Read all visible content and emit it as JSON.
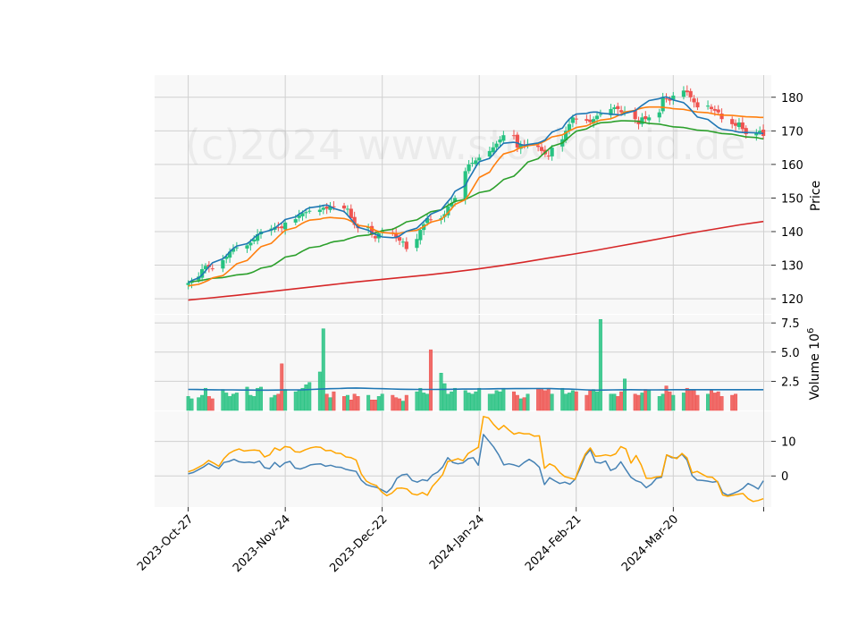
{
  "watermark": "(c)2024 www.stockdroid.de",
  "chart_data": {
    "type": "candlestick",
    "x_tick_labels": [
      "2023-Oct-27",
      "2023-Nov-24",
      "2023-Dec-22",
      "2024-Jan-24",
      "2024-Feb-21",
      "2024-Mar-20"
    ],
    "x_tick_days": [
      0,
      28,
      56,
      84,
      112,
      140
    ],
    "x_range_days": [
      -9.7,
      168.3
    ],
    "price_panel": {
      "ylabel": "Price",
      "yticks": [
        120,
        130,
        140,
        150,
        160,
        170,
        180
      ],
      "ylim": [
        115.5,
        186.6
      ],
      "colors": {
        "up": "#26c281",
        "down": "#ef5350"
      },
      "days": [
        0,
        1,
        3,
        4,
        5,
        6,
        7,
        10,
        11,
        12,
        13,
        14,
        17,
        18,
        19,
        20,
        21,
        24,
        25,
        26,
        27,
        28,
        31,
        32,
        33,
        34,
        35,
        38,
        39,
        40,
        41,
        42,
        45,
        46,
        47,
        48,
        49,
        52,
        53,
        54,
        55,
        56,
        59,
        60,
        61,
        62,
        63,
        66,
        67,
        68,
        69,
        70,
        73,
        74,
        75,
        76,
        77,
        80,
        81,
        82,
        83,
        84,
        87,
        88,
        89,
        90,
        91,
        94,
        95,
        96,
        97,
        98,
        101,
        102,
        103,
        104,
        105,
        108,
        109,
        110,
        111,
        112,
        115,
        116,
        117,
        118,
        119,
        122,
        123,
        124,
        125,
        126,
        129,
        130,
        131,
        132,
        133,
        136,
        137,
        138,
        139,
        140,
        143,
        144,
        145,
        146,
        147,
        150,
        151,
        152,
        153,
        154,
        157,
        158,
        159,
        160,
        161,
        164,
        165,
        166
      ],
      "close": [
        124.7,
        125.2,
        126.6,
        128.8,
        129.8,
        129.4,
        129.0,
        131.5,
        132.6,
        134.0,
        134.9,
        135.3,
        135.9,
        136.7,
        137.6,
        139.2,
        140.0,
        140.9,
        141.3,
        141.2,
        141.0,
        142.7,
        143.7,
        144.9,
        145.5,
        145.8,
        146.2,
        146.5,
        147.1,
        146.8,
        147.5,
        147.4,
        146.9,
        146.8,
        144.0,
        142.0,
        141.0,
        141.3,
        139.0,
        138.0,
        139.5,
        140.1,
        139.5,
        138.0,
        137.3,
        137.0,
        134.8,
        137.8,
        140.5,
        142.2,
        144.0,
        143.5,
        144.0,
        145.2,
        147.5,
        148.5,
        150.0,
        158.0,
        160.0,
        160.5,
        161.2,
        162.0,
        164.0,
        165.1,
        166.2,
        167.4,
        168.7,
        168.5,
        165.0,
        166.0,
        165.5,
        166.0,
        165.2,
        164.0,
        163.0,
        162.4,
        165.0,
        167.5,
        170.0,
        172.0,
        174.0,
        173.5,
        173.0,
        172.6,
        173.5,
        174.5,
        175.0,
        176.5,
        177.0,
        176.5,
        175.5,
        175.8,
        173.5,
        172.0,
        174.0,
        173.5,
        174.0,
        175.5,
        180.0,
        179.5,
        179.0,
        180.5,
        182.0,
        181.5,
        180.0,
        178.5,
        177.0,
        177.5,
        176.5,
        176.0,
        175.5,
        173.5,
        172.0,
        171.5,
        172.5,
        170.5,
        169.0,
        169.5,
        170.0,
        168.5
      ],
      "sma_short_blue": [
        124.8,
        125.4,
        126.2,
        127.1,
        128.3,
        129.6,
        130.7,
        131.9,
        132.8,
        134.0,
        135.0,
        135.7,
        136.4,
        137.2,
        138.2,
        139.0,
        139.6,
        140.5,
        141.0,
        141.9,
        142.6,
        143.6,
        144.4,
        145.2,
        145.8,
        146.6,
        147.1,
        147.5,
        147.8,
        147.9,
        147.5,
        146.9,
        146.0,
        144.9,
        143.7,
        142.5,
        141.3,
        140.4,
        139.7,
        139.2,
        138.8,
        138.4,
        138.2,
        138.3,
        138.7,
        139.4,
        140.1,
        141.0,
        142.0,
        143.0,
        144.0,
        145.2,
        146.5,
        147.8,
        149.0,
        150.2,
        152.0,
        153.7,
        155.8,
        157.5,
        159.3,
        160.8,
        161.8,
        162.9,
        164.2,
        165.3,
        166.3,
        166.6,
        166.4,
        165.9,
        165.7,
        165.9,
        166.4,
        166.8,
        167.3,
        168.5,
        169.6,
        170.8,
        172.3,
        173.5,
        174.4,
        175.0,
        175.2,
        175.5,
        175.6,
        175.6,
        175.3,
        175.0,
        174.9,
        174.8,
        174.7,
        175.2,
        176.0,
        176.8,
        177.6,
        178.3,
        179.0,
        179.6,
        180.0,
        180.1,
        179.7,
        179.2,
        178.4,
        177.5,
        176.4,
        175.2,
        174.1,
        173.4,
        172.6,
        171.8,
        171.0,
        170.5,
        170.1,
        169.8,
        169.6,
        169.5,
        169.5,
        169.4,
        169.3,
        169.2
      ],
      "sma_mid_orange": [
        123.8,
        124.0,
        124.3,
        124.7,
        125.1,
        125.6,
        126.2,
        126.9,
        127.7,
        128.6,
        129.5,
        130.4,
        131.4,
        132.4,
        133.5,
        134.5,
        135.5,
        136.5,
        137.5,
        138.5,
        139.5,
        140.4,
        141.2,
        141.9,
        142.5,
        143.0,
        143.4,
        143.7,
        144.0,
        144.1,
        144.2,
        144.1,
        143.9,
        143.6,
        143.1,
        142.5,
        141.9,
        141.4,
        140.9,
        140.4,
        140.0,
        139.7,
        139.5,
        139.4,
        139.5,
        139.7,
        140.0,
        140.4,
        140.9,
        141.5,
        142.1,
        142.8,
        143.6,
        144.6,
        145.6,
        146.8,
        148.1,
        149.5,
        151.0,
        152.7,
        154.4,
        156.1,
        157.7,
        159.3,
        160.7,
        162.0,
        163.1,
        164.0,
        164.6,
        165.0,
        165.3,
        165.6,
        166.0,
        166.5,
        167.0,
        167.6,
        168.2,
        168.8,
        169.4,
        170.0,
        170.5,
        171.0,
        171.5,
        172.0,
        172.4,
        172.8,
        173.2,
        173.6,
        174.0,
        174.5,
        175.0,
        175.6,
        176.1,
        176.5,
        176.8,
        177.0,
        177.1,
        177.1,
        177.0,
        176.9,
        176.8,
        176.6,
        176.4,
        176.2,
        176.0,
        175.8,
        175.6,
        175.4,
        175.2,
        175.0,
        174.8,
        174.7,
        174.6,
        174.5,
        174.4,
        174.3,
        174.2,
        174.1,
        174.0,
        174.0
      ],
      "sma_long_green": [
        125.0,
        125.1,
        125.3,
        125.5,
        125.7,
        125.9,
        126.1,
        126.3,
        126.5,
        126.7,
        126.9,
        127.1,
        127.4,
        127.7,
        128.1,
        128.6,
        129.1,
        129.7,
        130.3,
        131.0,
        131.7,
        132.4,
        133.0,
        133.6,
        134.2,
        134.7,
        135.2,
        135.6,
        136.0,
        136.3,
        136.7,
        137.0,
        137.4,
        137.8,
        138.1,
        138.4,
        138.7,
        139.0,
        139.3,
        139.6,
        139.9,
        140.3,
        140.7,
        141.2,
        141.7,
        142.3,
        142.9,
        143.5,
        144.1,
        144.7,
        145.3,
        145.9,
        146.5,
        147.2,
        147.8,
        148.4,
        149.0,
        149.6,
        150.1,
        150.6,
        151.1,
        151.6,
        152.2,
        152.9,
        153.7,
        154.6,
        155.5,
        156.5,
        157.5,
        158.5,
        159.6,
        160.7,
        161.7,
        162.7,
        163.6,
        164.5,
        165.4,
        166.4,
        167.3,
        168.2,
        169.1,
        169.9,
        170.6,
        171.2,
        171.7,
        172.1,
        172.4,
        172.6,
        172.8,
        172.9,
        173.0,
        173.0,
        172.9,
        172.8,
        172.6,
        172.4,
        172.2,
        172.0,
        171.8,
        171.6,
        171.4,
        171.2,
        171.0,
        170.8,
        170.6,
        170.4,
        170.2,
        170.0,
        169.8,
        169.6,
        169.4,
        169.2,
        169.0,
        168.8,
        168.6,
        168.4,
        168.2,
        168.0,
        167.8,
        167.6
      ],
      "sma_200_red": [
        119.6,
        120.3,
        121.0,
        121.8,
        122.6,
        123.4,
        124.2,
        125.0,
        125.7,
        126.4,
        127.1,
        127.9,
        128.8,
        129.8,
        130.9,
        132.1,
        133.2,
        134.4,
        135.7,
        137.0,
        138.3,
        139.6,
        140.8,
        142.0,
        143.0
      ]
    },
    "volume_panel": {
      "ylabel": "Volume  10^6",
      "yticks": [
        2.5,
        5.0,
        7.5
      ],
      "ylim": [
        0,
        8.2
      ],
      "volume": [
        1.2,
        1.0,
        1.1,
        1.3,
        1.9,
        1.2,
        1.0,
        1.8,
        1.5,
        1.2,
        1.4,
        1.5,
        2.0,
        1.3,
        1.2,
        1.9,
        2.0,
        1.1,
        1.3,
        1.4,
        4.0,
        1.8,
        1.6,
        1.7,
        1.9,
        2.2,
        2.4,
        3.3,
        7.0,
        1.4,
        1.1,
        1.6,
        1.2,
        1.3,
        0.9,
        1.4,
        1.2,
        1.3,
        0.9,
        0.9,
        1.2,
        1.4,
        1.3,
        1.1,
        1.0,
        0.8,
        1.3,
        1.6,
        1.9,
        1.5,
        1.4,
        5.2,
        3.2,
        2.3,
        1.4,
        1.6,
        1.9,
        1.7,
        1.5,
        1.4,
        1.6,
        1.9,
        1.4,
        1.4,
        1.7,
        1.6,
        1.9,
        1.6,
        1.3,
        1.0,
        1.1,
        1.4,
        1.9,
        1.8,
        1.7,
        1.9,
        1.4,
        1.9,
        1.4,
        1.5,
        1.7,
        1.6,
        1.3,
        1.7,
        1.8,
        1.6,
        7.8,
        1.4,
        1.4,
        1.2,
        1.6,
        2.7,
        1.4,
        1.3,
        1.5,
        1.8,
        1.7,
        1.2,
        1.4,
        2.1,
        1.6,
        1.3,
        1.5,
        1.9,
        1.8,
        1.8,
        1.3,
        1.4,
        1.7,
        1.5,
        1.6,
        1.2,
        1.3,
        1.4
      ],
      "vol_ma": [
        1.8,
        1.79,
        1.78,
        1.77,
        1.76,
        1.76,
        1.75,
        1.75,
        1.74,
        1.74,
        1.75,
        1.76,
        1.76,
        1.77,
        1.8,
        1.83,
        1.86,
        1.88,
        1.91,
        1.92,
        1.9,
        1.88,
        1.86,
        1.84,
        1.82,
        1.81,
        1.8,
        1.8,
        1.8,
        1.81,
        1.82,
        1.83,
        1.83,
        1.84,
        1.85,
        1.86,
        1.86,
        1.87,
        1.87,
        1.88,
        1.88,
        1.87,
        1.85,
        1.83,
        1.8,
        1.76,
        1.74,
        1.75,
        1.76,
        1.77,
        1.78,
        1.77,
        1.76,
        1.76,
        1.77,
        1.78,
        1.78,
        1.78,
        1.78,
        1.78,
        1.78,
        1.78,
        1.78,
        1.78,
        1.78,
        1.78
      ],
      "colors": {
        "ma": "#1f77b4"
      }
    },
    "oscillator_panel": {
      "yticks": [
        0,
        10
      ],
      "ylim": [
        -9.0,
        18.7
      ],
      "blue": [
        0.6,
        1.0,
        1.8,
        2.6,
        3.6,
        2.8,
        2.1,
        3.9,
        4.2,
        4.8,
        4.1,
        3.9,
        4.0,
        3.8,
        4.3,
        2.4,
        2.1,
        3.9,
        2.6,
        3.8,
        4.2,
        2.3,
        2.0,
        2.5,
        3.2,
        3.4,
        3.5,
        2.8,
        3.1,
        2.6,
        2.5,
        1.9,
        1.6,
        1.3,
        -1.2,
        -2.5,
        -3.0,
        -3.3,
        -4.0,
        -4.8,
        -3.4,
        -0.7,
        0.3,
        0.5,
        -1.3,
        -1.8,
        -1.1,
        -1.4,
        0.3,
        1.1,
        2.6,
        5.3,
        3.9,
        3.5,
        3.8,
        5.0,
        5.3,
        3.1,
        12.0,
        10.2,
        8.4,
        6.1,
        3.2,
        3.5,
        3.2,
        2.7,
        3.9,
        4.8,
        3.9,
        2.5,
        -2.5,
        -0.5,
        -1.4,
        -2.2,
        -1.8,
        -2.4,
        -1.0,
        2.2,
        5.8,
        7.6,
        4.0,
        3.7,
        4.3,
        1.6,
        2.2,
        4.1,
        1.8,
        -0.4,
        -1.4,
        -1.9,
        -3.4,
        -2.4,
        -0.7,
        -0.4,
        6.1,
        5.3,
        5.2,
        6.3,
        4.6,
        0.1,
        -1.2,
        -1.3,
        -1.5,
        -1.8,
        -1.6,
        -4.8,
        -5.6,
        -5.1,
        -4.5,
        -3.6,
        -2.2,
        -2.9,
        -3.8,
        -1.4
      ],
      "orange": [
        1.2,
        1.7,
        2.5,
        3.3,
        4.5,
        3.7,
        2.8,
        5.0,
        6.5,
        7.3,
        7.8,
        7.2,
        7.4,
        7.5,
        7.3,
        5.5,
        6.1,
        8.1,
        7.4,
        8.5,
        8.3,
        7.0,
        6.9,
        7.6,
        8.1,
        8.4,
        8.3,
        7.3,
        7.4,
        6.6,
        6.5,
        5.5,
        5.3,
        4.6,
        0.6,
        -1.5,
        -2.3,
        -2.8,
        -4.6,
        -5.7,
        -5.0,
        -3.6,
        -3.5,
        -3.8,
        -5.2,
        -5.5,
        -4.8,
        -5.6,
        -3.0,
        -1.4,
        0.4,
        4.2,
        4.5,
        5.0,
        4.4,
        6.5,
        7.4,
        8.3,
        17.2,
        16.8,
        14.9,
        13.4,
        14.6,
        13.3,
        12.1,
        12.5,
        12.2,
        12.2,
        11.5,
        11.6,
        2.2,
        3.5,
        2.8,
        1.0,
        -0.2,
        -0.6,
        -1.0,
        3.0,
        6.3,
        8.1,
        5.7,
        5.8,
        6.1,
        5.8,
        6.4,
        8.5,
        7.8,
        3.7,
        5.9,
        3.2,
        -0.7,
        -0.7,
        -0.3,
        -0.1,
        6.1,
        5.5,
        5.0,
        6.5,
        5.2,
        0.9,
        1.3,
        0.5,
        -0.3,
        -0.4,
        -1.7,
        -5.5,
        -5.9,
        -5.6,
        -5.3,
        -5.1,
        -6.6,
        -7.4,
        -7.1,
        -6.6
      ],
      "colors": {
        "blue": "#4682b4",
        "orange": "#ffa500"
      }
    },
    "line_colors": {
      "sma_short_blue": "#1f77b4",
      "sma_mid_orange": "#ff7f0e",
      "sma_long_green": "#2ca02c",
      "sma_200_red": "#d62728"
    },
    "grid": true,
    "legend": "none"
  }
}
